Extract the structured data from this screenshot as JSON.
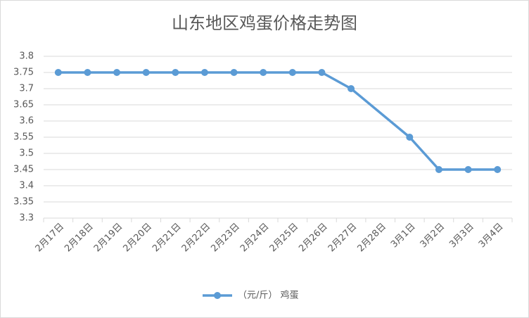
{
  "chart_data": {
    "type": "line",
    "title": "山东地区鸡蛋价格走势图",
    "categories": [
      "2月17日",
      "2月18日",
      "2月19日",
      "2月20日",
      "2月21日",
      "2月22日",
      "2月23日",
      "2月24日",
      "2月25日",
      "2月26日",
      "2月27日",
      "2月28日",
      "3月1日",
      "3月2日",
      "3月3日",
      "3月4日"
    ],
    "series": [
      {
        "name": "（元/斤） 鸡蛋",
        "color": "#5b9bd5",
        "values": [
          3.75,
          3.75,
          3.75,
          3.75,
          3.75,
          3.75,
          3.75,
          3.75,
          3.75,
          3.75,
          3.7,
          null,
          3.55,
          3.45,
          3.45,
          3.45
        ]
      }
    ],
    "ylim": [
      3.3,
      3.8
    ],
    "yticks": [
      3.3,
      3.35,
      3.4,
      3.45,
      3.5,
      3.55,
      3.6,
      3.65,
      3.7,
      3.75,
      3.8
    ],
    "grid": true,
    "span_gaps": true,
    "legend": "bottom"
  }
}
